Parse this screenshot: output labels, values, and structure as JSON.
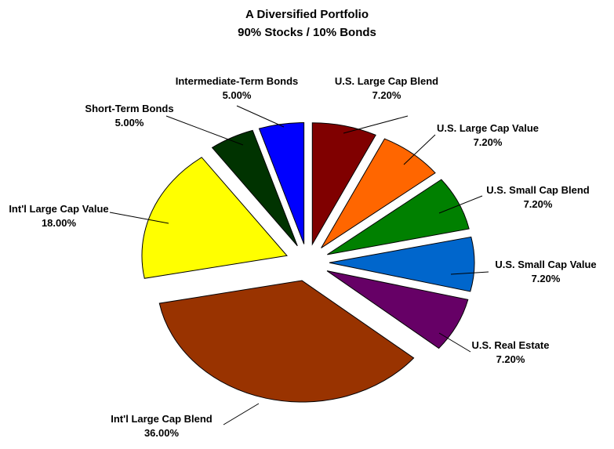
{
  "chart_data": {
    "type": "pie",
    "title": "A Diversified Portfolio",
    "subtitle": "90% Stocks / 10% Bonds",
    "slices": [
      {
        "label": "U.S. Large Cap Blend",
        "value": 7.2,
        "display": "7.20%",
        "color": "#800000"
      },
      {
        "label": "U.S. Large Cap Value",
        "value": 7.2,
        "display": "7.20%",
        "color": "#ff6600"
      },
      {
        "label": "U.S. Small Cap Blend",
        "value": 7.2,
        "display": "7.20%",
        "color": "#008000"
      },
      {
        "label": "U.S. Small Cap Value",
        "value": 7.2,
        "display": "7.20%",
        "color": "#0066cc"
      },
      {
        "label": "U.S. Real Estate",
        "value": 7.2,
        "display": "7.20%",
        "color": "#660066"
      },
      {
        "label": "Int'l Large Cap Blend",
        "value": 36.0,
        "display": "36.00%",
        "color": "#993300"
      },
      {
        "label": "Int'l Large Cap Value",
        "value": 18.0,
        "display": "18.00%",
        "color": "#ffff00"
      },
      {
        "label": "Short-Term Bonds",
        "value": 5.0,
        "display": "5.00%",
        "color": "#003300"
      },
      {
        "label": "Intermediate-Term Bonds",
        "value": 5.0,
        "display": "5.00%",
        "color": "#0000ff"
      }
    ],
    "exploded": true,
    "legend": "none"
  }
}
